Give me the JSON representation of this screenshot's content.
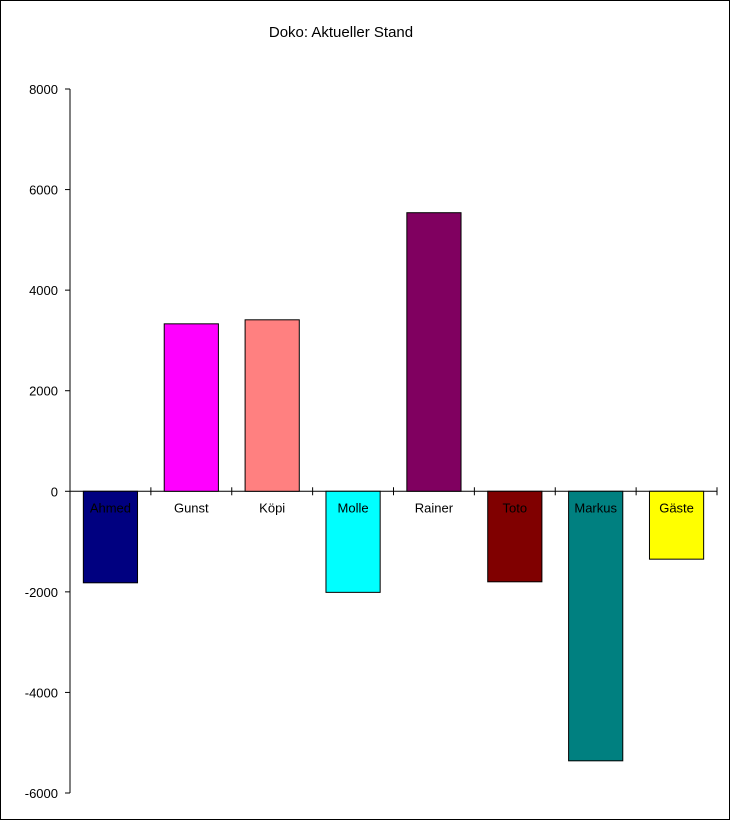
{
  "chart_data": {
    "type": "bar",
    "title": "Doko: Aktueller Stand",
    "xlabel": "",
    "ylabel": "",
    "ylim": [
      -6000,
      8000
    ],
    "yticks": [
      8000,
      6000,
      4000,
      2000,
      0,
      -2000,
      -4000,
      -6000
    ],
    "grid": false,
    "legend": "none",
    "categories": [
      "Ahmed",
      "Gunst",
      "Köpi",
      "Molle",
      "Rainer",
      "Toto",
      "Markus",
      "Gäste"
    ],
    "values": [
      -1820,
      3330,
      3410,
      -2010,
      5540,
      -1800,
      -5360,
      -1350
    ],
    "colors": [
      "#000080",
      "#ff00ff",
      "#ff8080",
      "#00ffff",
      "#800060",
      "#800000",
      "#008080",
      "#ffff00"
    ]
  }
}
